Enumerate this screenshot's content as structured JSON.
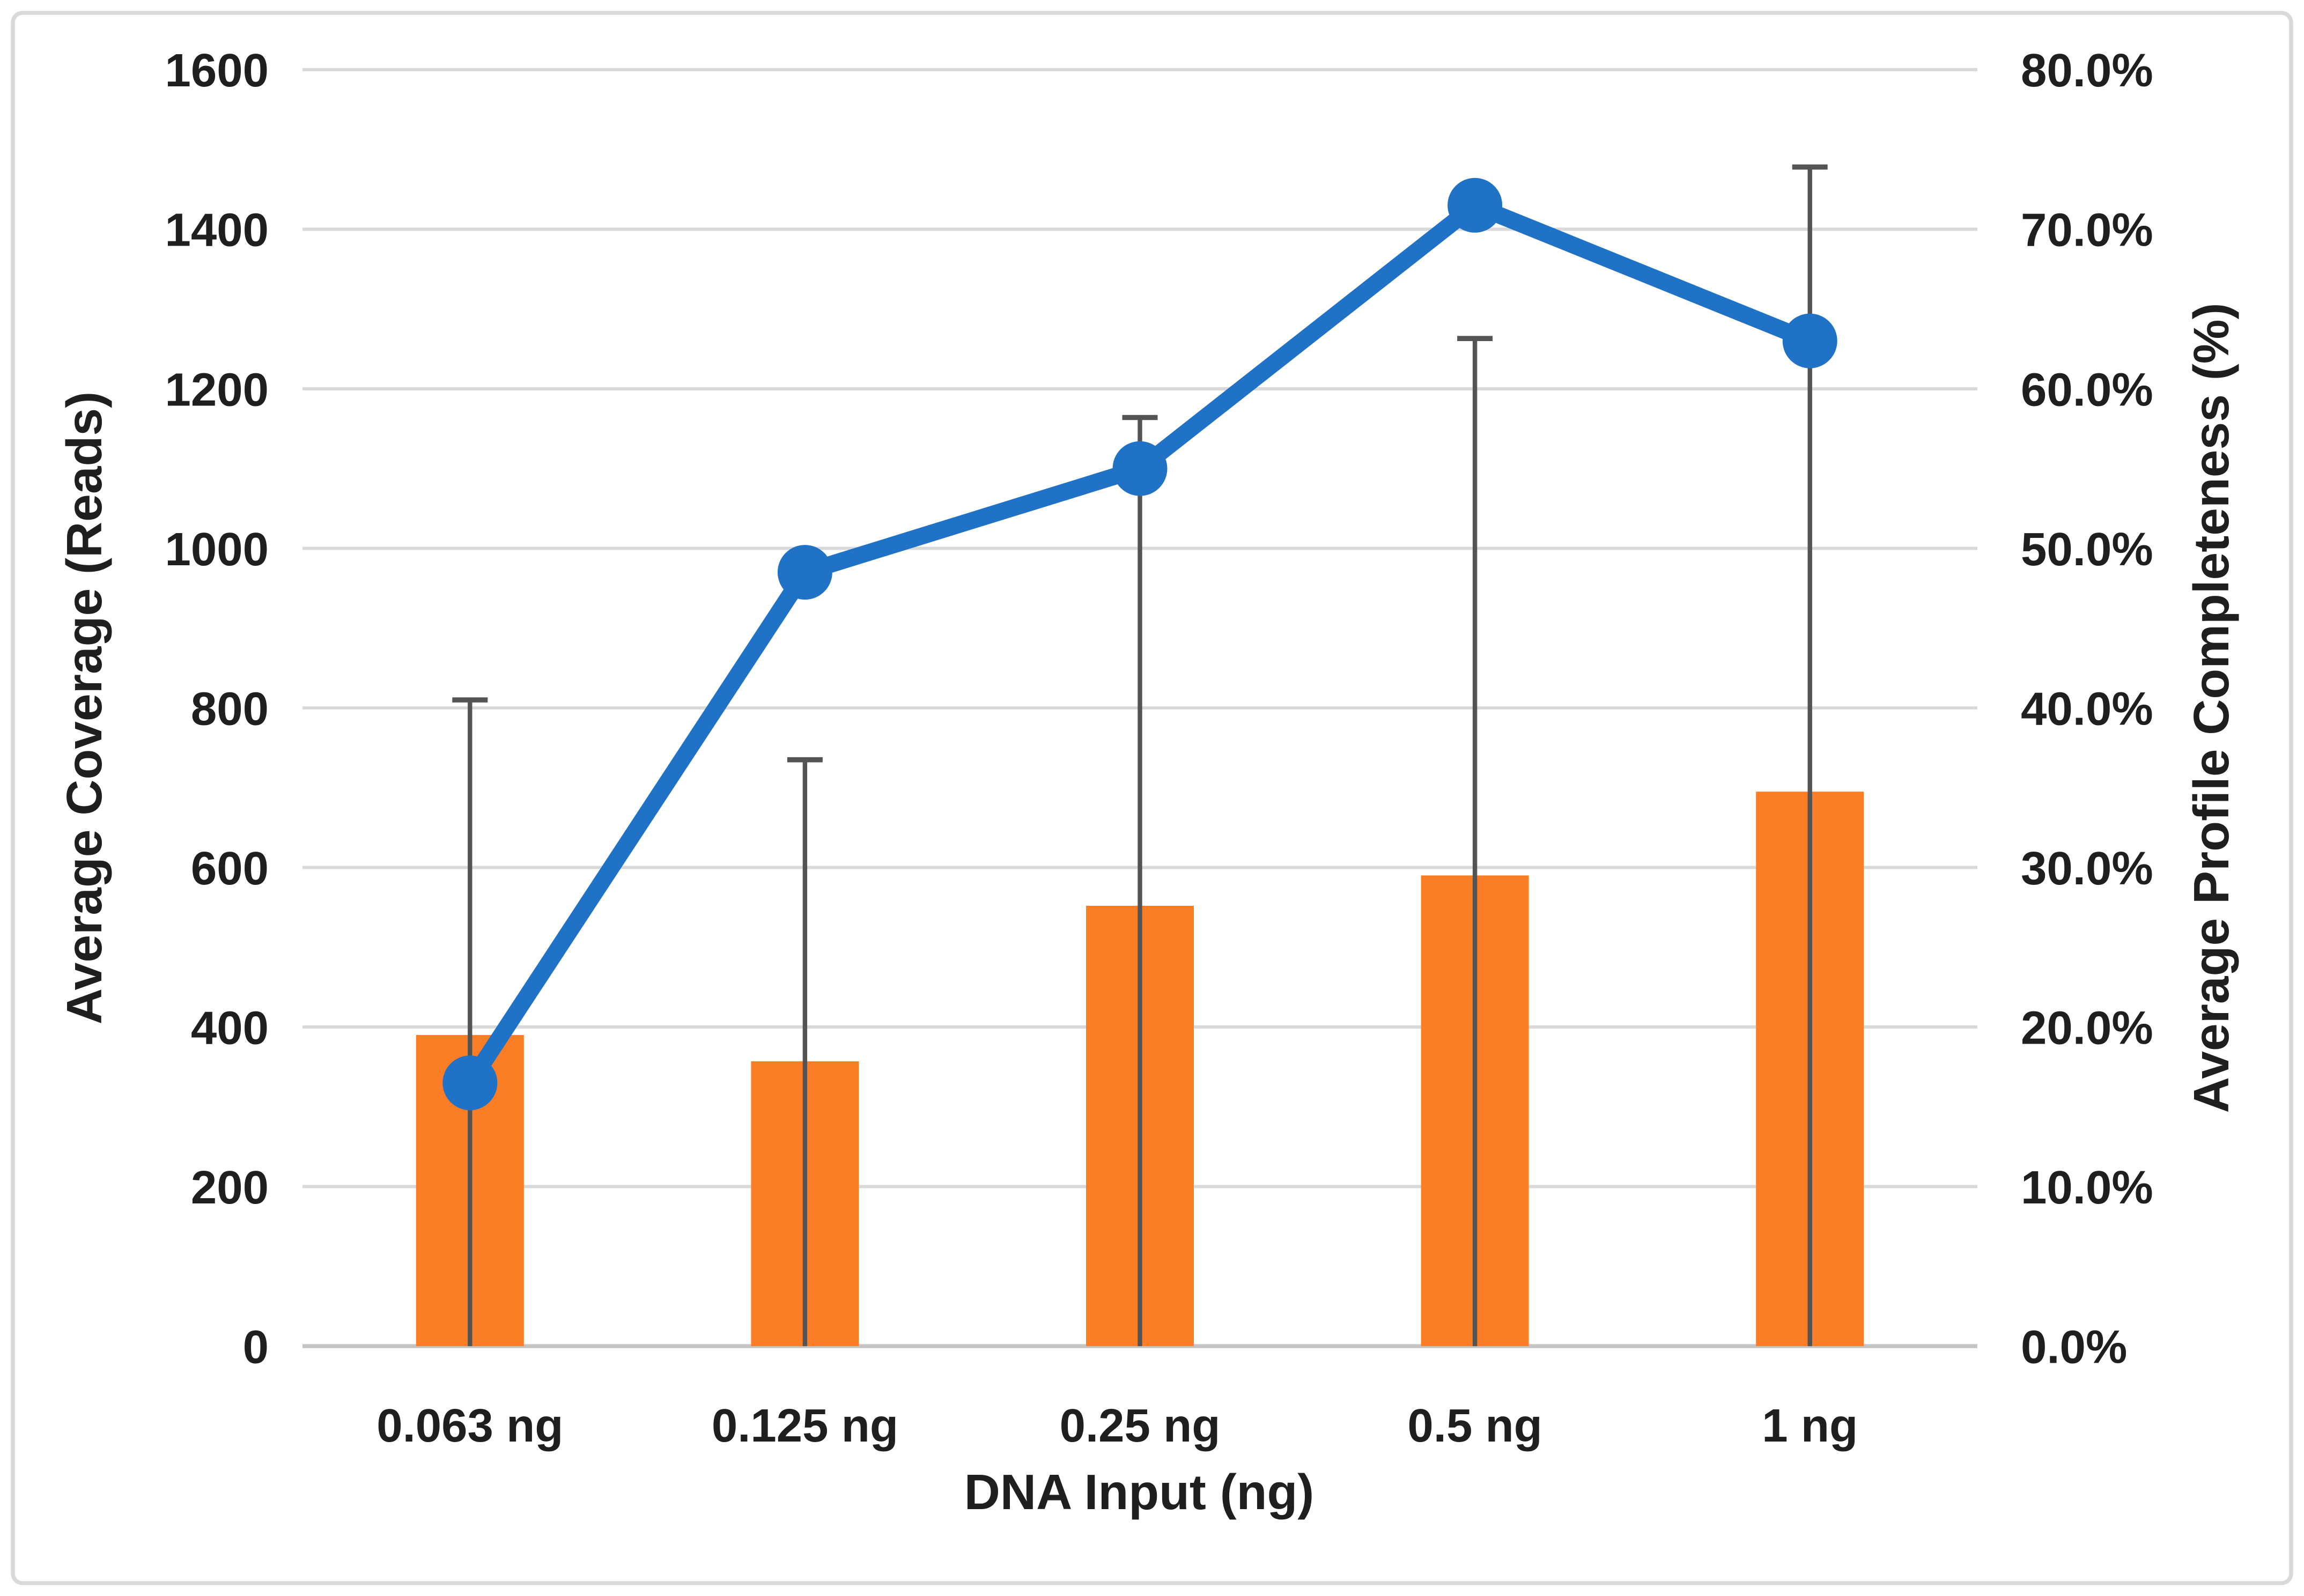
{
  "chart_data": {
    "type": "combo-bar-line-dual-axis",
    "title": "",
    "categories": [
      "0.063 ng",
      "0.125 ng",
      "0.25 ng",
      "0.5 ng",
      "1 ng"
    ],
    "x_axis": {
      "title": "DNA Input (ng)"
    },
    "left_axis": {
      "title": "Average Coverage (Reads)",
      "min": 0,
      "max": 1600,
      "step": 200,
      "tick_labels": [
        "1600",
        "1400",
        "1200",
        "1000",
        "800",
        "600",
        "400",
        "200",
        "0"
      ]
    },
    "right_axis": {
      "title": "Average Profile Completeness (%)",
      "min": 0,
      "max": 80,
      "step": 10,
      "tick_labels": [
        "80.0%",
        "70.0%",
        "60.0%",
        "50.0%",
        "40.0%",
        "30.0%",
        "20.0%",
        "10.0%",
        "0.0%"
      ]
    },
    "series": [
      {
        "name": "Average Coverage (Reads)",
        "chart_type": "bar",
        "axis": "left",
        "color": "#FB7D26",
        "values": [
          390,
          357,
          552,
          590,
          695
        ],
        "error_bars_plus": [
          420,
          378,
          612,
          673,
          783
        ],
        "error_bar_whisker_tops": [
          810,
          735,
          1164,
          1263,
          1478
        ],
        "error_bar_color": "#545454"
      },
      {
        "name": "Average Profile Completeness (%)",
        "chart_type": "line",
        "axis": "right",
        "color": "#1F72C6",
        "marker": "circle",
        "values": [
          16.5,
          48.5,
          55.0,
          71.5,
          63.0
        ]
      }
    ],
    "legend": "none",
    "gridlines": {
      "show": true,
      "color": "#D9D9D9"
    },
    "axis_line_color": "#C4C4C4",
    "text_color": "#1F1F1F",
    "background": "#FFFFFF",
    "border_color": "#D9D9D9"
  }
}
